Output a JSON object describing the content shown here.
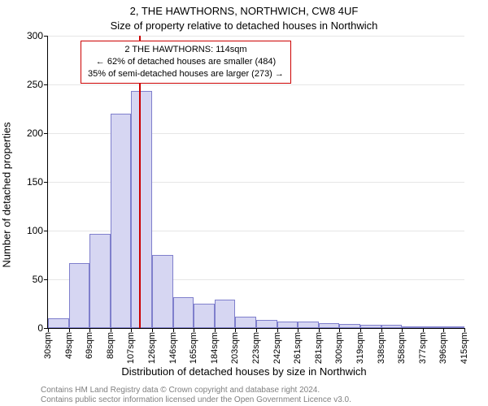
{
  "titles": {
    "line1": "2, THE HAWTHORNS, NORTHWICH, CW8 4UF",
    "line2": "Size of property relative to detached houses in Northwich"
  },
  "ylabel": "Number of detached properties",
  "xlabel": "Distribution of detached houses by size in Northwich",
  "footnote1": "Contains HM Land Registry data © Crown copyright and database right 2024.",
  "footnote2": "Contains public sector information licensed under the Open Government Licence v3.0.",
  "chart": {
    "type": "histogram",
    "ylim": [
      0,
      300
    ],
    "ytick_step": 50,
    "xtick_labels": [
      "30sqm",
      "49sqm",
      "69sqm",
      "88sqm",
      "107sqm",
      "126sqm",
      "146sqm",
      "165sqm",
      "184sqm",
      "203sqm",
      "223sqm",
      "242sqm",
      "261sqm",
      "281sqm",
      "300sqm",
      "319sqm",
      "338sqm",
      "358sqm",
      "377sqm",
      "396sqm",
      "415sqm"
    ],
    "bars": [
      10,
      67,
      97,
      220,
      243,
      75,
      32,
      25,
      29,
      12,
      8,
      7,
      7,
      5,
      4,
      3,
      3,
      2,
      2,
      2
    ],
    "bar_fill": "#d6d6f2",
    "bar_stroke": "#7f7fcc",
    "background_color": "#ffffff",
    "grid_color": "#e6e6e6",
    "axis_color": "#000000",
    "marker": {
      "position_sqm": 114,
      "color": "#cc0000"
    },
    "axis_fontsize": 12,
    "title_fontsize": 13
  },
  "annotation": {
    "line1": "2 THE HAWTHORNS: 114sqm",
    "line2": "← 62% of detached houses are smaller (484)",
    "line3": "35% of semi-detached houses are larger (273) →"
  }
}
